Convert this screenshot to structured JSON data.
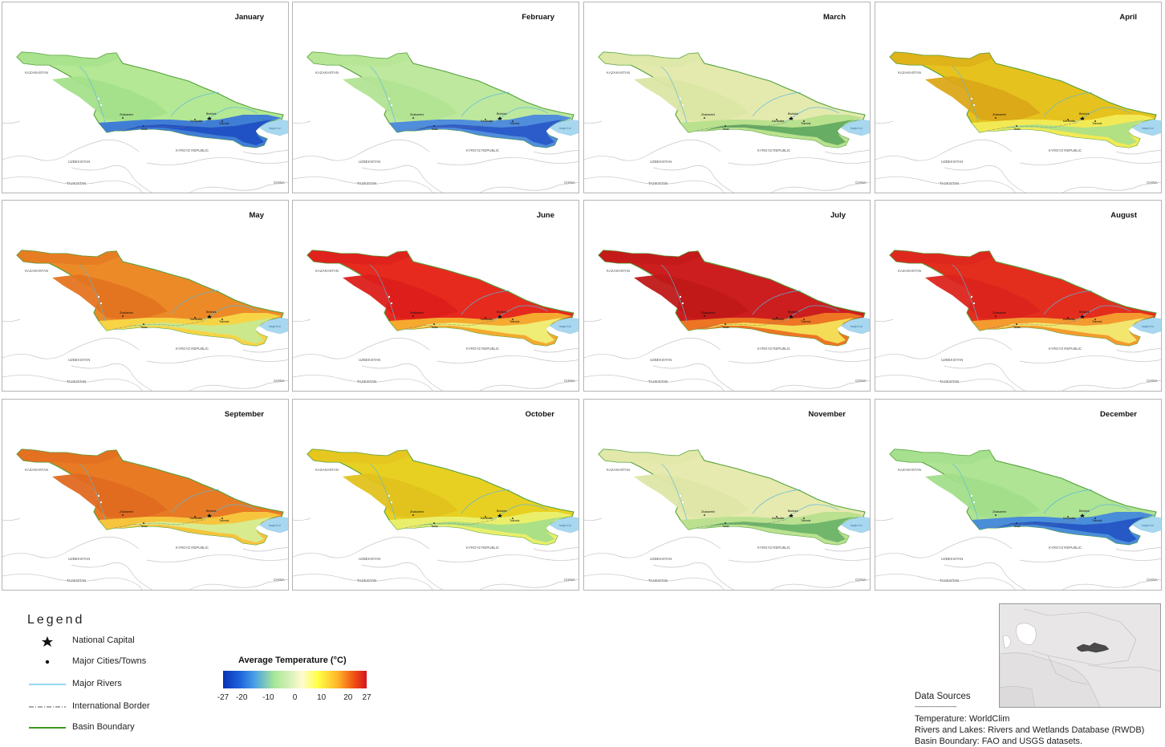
{
  "panels": [
    {
      "month": "January",
      "zones": [
        "#b4e894",
        "#a4e08a",
        "#3a78d8",
        "#2050c4"
      ],
      "lake": "#a8d8f0"
    },
    {
      "month": "February",
      "zones": [
        "#bde89e",
        "#b2e493",
        "#4a88de",
        "#2a5ac8"
      ],
      "lake": "#a8d8f0"
    },
    {
      "month": "March",
      "zones": [
        "#e4eaae",
        "#dbe6a4",
        "#b6e08c",
        "#62aa62"
      ],
      "lake": "#a8d8f0"
    },
    {
      "month": "April",
      "zones": [
        "#e6c21e",
        "#dba818",
        "#f2ec58",
        "#aee086"
      ],
      "lake": "#a8d8f0"
    },
    {
      "month": "May",
      "zones": [
        "#ec8a28",
        "#e47420",
        "#f8d848",
        "#c8ea90"
      ],
      "lake": "#a8d8f0"
    },
    {
      "month": "June",
      "zones": [
        "#e62a1e",
        "#dc1e1a",
        "#f6b030",
        "#eef07a"
      ],
      "lake": "#a8d8f0"
    },
    {
      "month": "July",
      "zones": [
        "#cc1e1e",
        "#c01818",
        "#ee7a24",
        "#f4e25a"
      ],
      "lake": "#a8d8f0"
    },
    {
      "month": "August",
      "zones": [
        "#e32e1e",
        "#dc241c",
        "#f4a030",
        "#f2ea72"
      ],
      "lake": "#a8d8f0"
    },
    {
      "month": "September",
      "zones": [
        "#e87a24",
        "#e06a20",
        "#f8c840",
        "#d6ee94"
      ],
      "lake": "#a8d8f0"
    },
    {
      "month": "October",
      "zones": [
        "#e8d022",
        "#e2c21e",
        "#eaf070",
        "#a8de88"
      ],
      "lake": "#a8d8f0"
    },
    {
      "month": "November",
      "zones": [
        "#e6eaae",
        "#dee6a6",
        "#b8e08e",
        "#6cb46a"
      ],
      "lake": "#a8d8f0"
    },
    {
      "month": "December",
      "zones": [
        "#aee494",
        "#a2de8a",
        "#4488dc",
        "#2456c4"
      ],
      "lake": "#a8d8f0"
    }
  ],
  "map_labels": {
    "kazakhstan": "KAZAKHSTAN",
    "kyrgyz": "KYRGYZ REPUBLIC",
    "uzbekistan": "UZBEKISTAN",
    "tajikistan": "TAJIKISTAN",
    "china": "CHINA",
    "city1": "Zhabaretni",
    "city2": "Taraz",
    "city3": "Karabalta",
    "city4": "Bishkek",
    "city5": "Tokmok",
    "lake": "Issyk-Kul"
  },
  "legend": {
    "title": "Legend",
    "items": [
      {
        "label": "National Capital",
        "icon": "star-icon"
      },
      {
        "label": "Major Cities/Towns",
        "icon": "dot-icon"
      },
      {
        "label": "Major Rivers",
        "icon": "river-line",
        "color": "#4fc4ea"
      },
      {
        "label": "International Border",
        "icon": "border-line",
        "color": "#555555"
      },
      {
        "label": "Basin Boundary",
        "icon": "basin-line",
        "color": "#3a9a1e"
      }
    ]
  },
  "colorbar": {
    "title": "Average Temperature (°C)",
    "min": -27,
    "max": 27,
    "ticks": [
      {
        "label": "-27",
        "value": -27
      },
      {
        "label": "-20",
        "value": -20
      },
      {
        "label": "-10",
        "value": -10
      },
      {
        "label": "0",
        "value": 0
      },
      {
        "label": "10",
        "value": 10
      },
      {
        "label": "20",
        "value": 20
      },
      {
        "label": "27",
        "value": 27
      }
    ]
  },
  "data_sources": {
    "title": "Data Sources",
    "separator": "------------------------",
    "lines": [
      "Temperature: WorldClim",
      "Rivers and Lakes: Rivers and Wetlands Database (RWDB)",
      "Basin Boundary: FAO and USGS datasets."
    ]
  }
}
